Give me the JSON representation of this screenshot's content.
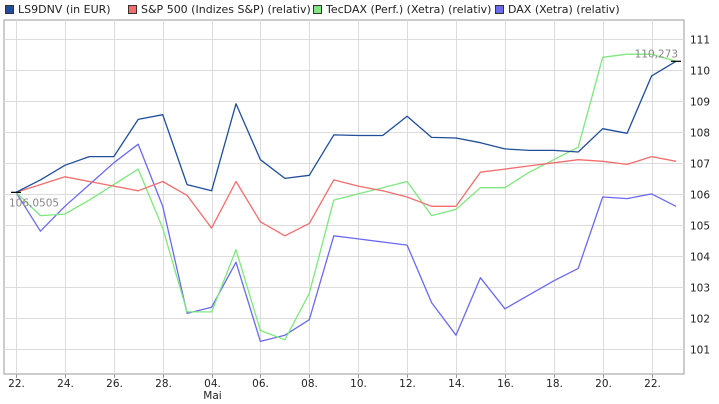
{
  "chart_data": {
    "type": "line",
    "x_labels": [
      "22.",
      "24.",
      "26.",
      "28.",
      "04.",
      "06.",
      "08.",
      "10.",
      "12.",
      "14.",
      "16.",
      "18.",
      "20.",
      "22."
    ],
    "month_label": "Mai",
    "y_ticks": [
      "101",
      "102",
      "103",
      "104",
      "105",
      "106",
      "107",
      "108",
      "109",
      "110",
      "111"
    ],
    "ylim": [
      100.2,
      111.6
    ],
    "grid": true,
    "legend_position": "top",
    "series": [
      {
        "name": "LS9DNV (in EUR)",
        "color": "#1f4e9a",
        "values": [
          106.05,
          106.45,
          106.92,
          107.2,
          107.2,
          108.4,
          108.55,
          106.3,
          106.1,
          108.9,
          107.1,
          106.5,
          106.6,
          107.9,
          107.88,
          107.88,
          108.5,
          107.82,
          107.8,
          107.65,
          107.45,
          107.4,
          107.4,
          107.35,
          108.1,
          107.95,
          109.8,
          110.27
        ]
      },
      {
        "name": "S&P 500 (Indizes S&P) (relativ)",
        "color": "#f26d6d",
        "values": [
          106.05,
          106.3,
          106.55,
          106.4,
          106.25,
          106.1,
          106.4,
          105.95,
          104.9,
          106.4,
          105.1,
          104.65,
          105.05,
          106.45,
          106.25,
          106.1,
          105.9,
          105.6,
          105.6,
          106.7,
          106.8,
          106.9,
          107.0,
          107.1,
          107.05,
          106.95,
          107.2,
          107.05
        ]
      },
      {
        "name": "TecDAX (Perf.) (Xetra) (relativ)",
        "color": "#7de87d",
        "values": [
          106.05,
          105.3,
          105.35,
          105.8,
          106.3,
          106.8,
          104.9,
          102.2,
          102.2,
          104.2,
          101.6,
          101.3,
          102.8,
          105.8,
          106.0,
          106.2,
          106.4,
          105.3,
          105.5,
          106.2,
          106.2,
          106.7,
          107.1,
          107.5,
          110.4,
          110.5,
          110.5,
          110.27
        ]
      },
      {
        "name": "DAX (Xetra) (relativ)",
        "color": "#6a6af0",
        "values": [
          106.05,
          104.8,
          105.6,
          106.3,
          107.0,
          107.6,
          105.6,
          102.15,
          102.35,
          103.8,
          101.25,
          101.45,
          101.95,
          104.65,
          104.55,
          104.45,
          104.35,
          102.5,
          101.45,
          103.3,
          102.3,
          102.75,
          103.2,
          103.6,
          105.9,
          105.85,
          106.0,
          105.6
        ]
      }
    ],
    "data_labels": [
      "106,0505",
      "110,273"
    ]
  }
}
